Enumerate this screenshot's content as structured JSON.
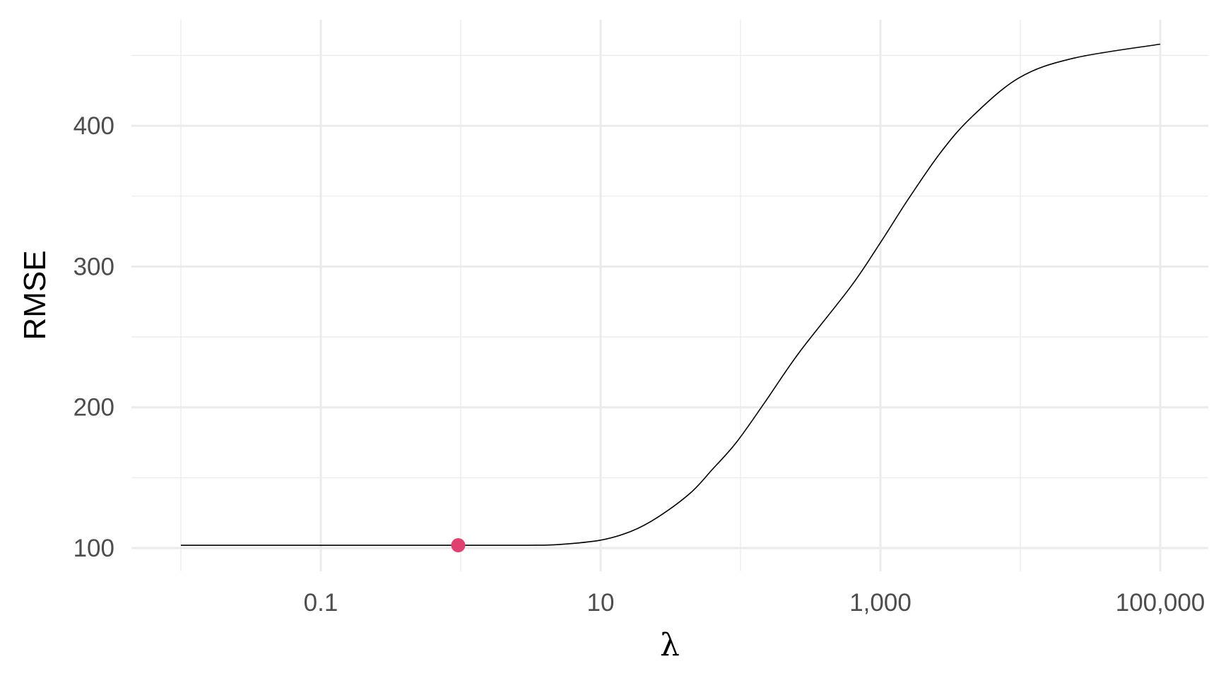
{
  "chart_data": {
    "type": "line",
    "title": "",
    "xlabel": "λ",
    "ylabel": "RMSE",
    "x_scale": "log10",
    "xlim": [
      0.01,
      100000
    ],
    "ylim": [
      85,
      470
    ],
    "x_ticks": [
      0.1,
      10,
      1000,
      100000
    ],
    "x_tick_labels": [
      "0.1",
      "10",
      "1,000",
      "100,000"
    ],
    "x_minor_ticks": [
      0.01,
      1,
      100,
      10000
    ],
    "y_ticks": [
      100,
      200,
      300,
      400
    ],
    "y_tick_labels": [
      "100",
      "200",
      "300",
      "400"
    ],
    "y_minor_ticks": [
      150,
      250,
      350,
      450
    ],
    "grid": true,
    "line_color": "#000000",
    "series": [
      {
        "x": [
          0.01,
          0.1,
          1,
          3,
          5,
          10,
          16.6,
          25.7,
          43.7,
          63.1,
          93.3,
          148,
          263,
          617,
          1000,
          1585,
          2692,
          4467,
          9772,
          23988,
          100000
        ],
        "y": [
          102,
          102,
          102,
          102,
          102.5,
          105.6,
          112,
          122,
          139,
          156,
          175,
          203,
          239,
          286,
          317,
          348,
          381,
          406,
          434,
          448,
          458
        ]
      }
    ],
    "highlight_point": {
      "x": 0.96,
      "y": 102,
      "color": "#E0406F"
    }
  }
}
